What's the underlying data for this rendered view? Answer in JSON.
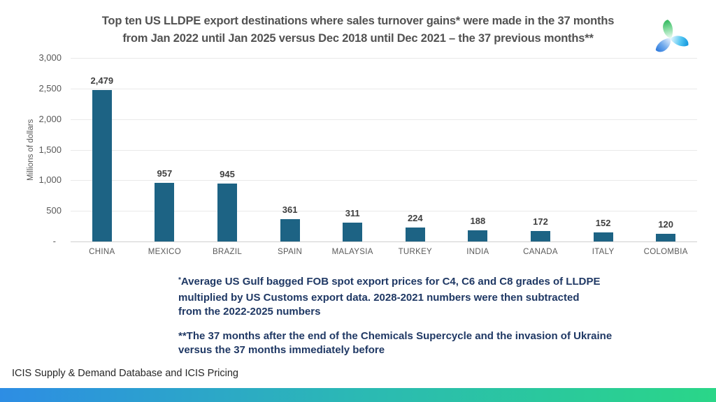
{
  "title": {
    "line1": "Top ten US LLDPE export destinations where sales turnover gains* were made in the 37 months",
    "line2": "from Jan 2022 until Jan 2025 versus Dec 2018 until Dec 2021 – the 37 previous months**"
  },
  "logo": {
    "name": "icis-logo",
    "petal_colors": [
      "#31B75D",
      "#15A3E8",
      "#2F7CDE"
    ]
  },
  "chart_data": {
    "type": "bar",
    "title": "Top ten US LLDPE export destinations where sales turnover gains were made in the 37 months from Jan 2022 until Jan 2025 versus Dec 2018 until Dec 2021 – the 37 previous months",
    "categories": [
      "CHINA",
      "MEXICO",
      "BRAZIL",
      "SPAIN",
      "MALAYSIA",
      "TURKEY",
      "INDIA",
      "CANADA",
      "ITALY",
      "COLOMBIA"
    ],
    "values": [
      2479,
      957,
      945,
      361,
      311,
      224,
      188,
      172,
      152,
      120
    ],
    "value_labels": [
      "2,479",
      "957",
      "945",
      "361",
      "311",
      "224",
      "188",
      "172",
      "152",
      "120"
    ],
    "xlabel": "",
    "ylabel": "Millions of dollars",
    "ylim": [
      0,
      3000
    ],
    "ytick_labels": [
      "3,000",
      "2,500",
      "2,000",
      "1,500",
      "1,000",
      "500",
      "-"
    ],
    "ytick_values": [
      3000,
      2500,
      2000,
      1500,
      1000,
      500,
      0
    ],
    "grid": true,
    "legend_position": "none",
    "bar_color": "#1D6384"
  },
  "footnotes": {
    "note1_marker": "*",
    "note1_lines": [
      "Average US Gulf bagged FOB spot export prices for C4, C6 and C8 grades of LLDPE",
      "multiplied by US Customs export data. 2028-2021 numbers were then subtracted",
      "from the 2022-2025 numbers"
    ],
    "note2_lines": [
      "**The 37 months after the end of the Chemicals Supercycle and the invasion of Ukraine",
      "versus the 37 months immediately before"
    ],
    "color": "#1F3864"
  },
  "source": "ICIS Supply & Demand Database and ICIS Pricing",
  "footer_gradient": [
    "#2D8DE4",
    "#2BB9B4",
    "#2AD688"
  ]
}
